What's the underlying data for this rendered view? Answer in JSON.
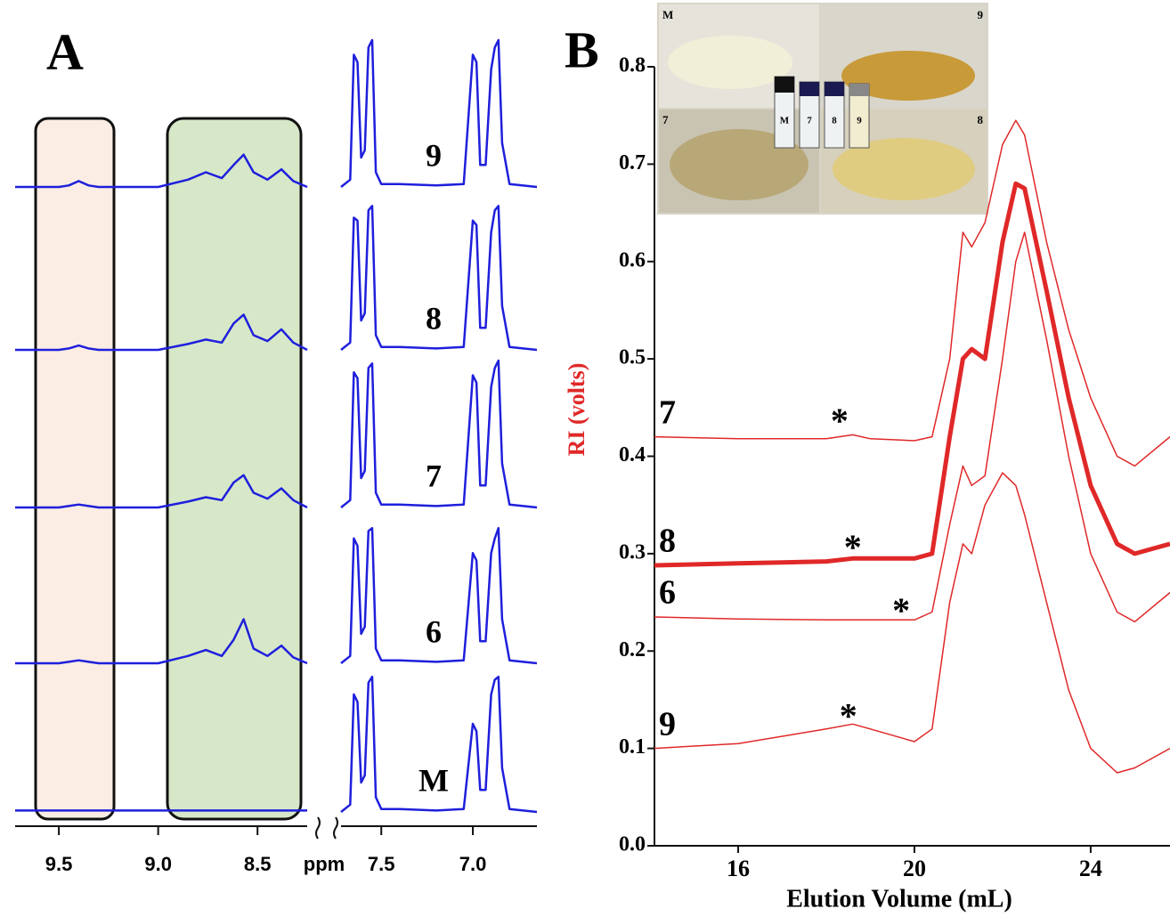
{
  "chart_data": [
    {
      "type": "line",
      "panel_label": "A",
      "xlabel": "ppm",
      "xlim": [
        9.72,
        6.65
      ],
      "xbreak": [
        8.25,
        7.72
      ],
      "xticks": [
        9.5,
        {
          "value": 9,
          "label": "9.0"
        },
        8.5,
        7.5,
        {
          "value": 7,
          "label": "7.0"
        }
      ],
      "x": [
        9.72,
        9.5,
        9.45,
        9.4,
        9.35,
        9.3,
        9.0,
        8.85,
        8.76,
        8.68,
        8.62,
        8.57,
        8.52,
        8.45,
        8.38,
        8.32,
        8.25,
        8.0,
        7.72,
        7.67,
        7.65,
        7.63,
        7.61,
        7.59,
        7.57,
        7.55,
        7.53,
        7.5,
        7.4,
        7.2,
        7.05,
        7.0,
        6.98,
        6.96,
        6.93,
        6.9,
        6.88,
        6.86,
        6.84,
        6.8,
        6.65
      ],
      "color": "#1f1fdc",
      "series": [
        {
          "name": "9",
          "values": [
            0,
            0,
            0.01,
            0.04,
            0.01,
            0,
            0,
            0.05,
            0.1,
            0.06,
            0.15,
            0.22,
            0.1,
            0.05,
            0.12,
            0.04,
            0,
            null,
            0,
            0.05,
            0.9,
            0.85,
            0.2,
            0.25,
            0.95,
            1.0,
            0.1,
            0.02,
            0.02,
            0.01,
            0.02,
            0.9,
            0.85,
            0.15,
            0.15,
            0.8,
            0.95,
            1.0,
            0.3,
            0.02,
            0
          ]
        },
        {
          "name": "8",
          "values": [
            0,
            0,
            0.01,
            0.03,
            0.01,
            0,
            0,
            0.04,
            0.07,
            0.05,
            0.18,
            0.24,
            0.1,
            0.06,
            0.14,
            0.05,
            0,
            null,
            0,
            0.05,
            0.9,
            0.88,
            0.2,
            0.25,
            0.95,
            0.98,
            0.1,
            0.02,
            0.02,
            0.01,
            0.02,
            0.88,
            0.85,
            0.15,
            0.15,
            0.8,
            0.95,
            0.98,
            0.3,
            0.02,
            0
          ]
        },
        {
          "name": "7",
          "values": [
            0,
            0,
            0.01,
            0.02,
            0.01,
            0,
            0,
            0.04,
            0.07,
            0.05,
            0.17,
            0.22,
            0.1,
            0.06,
            0.13,
            0.05,
            0,
            null,
            0,
            0.05,
            0.92,
            0.88,
            0.2,
            0.25,
            0.95,
            0.98,
            0.1,
            0.02,
            0.02,
            0.01,
            0.02,
            0.9,
            0.85,
            0.15,
            0.15,
            0.82,
            0.95,
            1.0,
            0.3,
            0.02,
            0
          ]
        },
        {
          "name": "6",
          "values": [
            0,
            0,
            0.01,
            0.02,
            0.01,
            0,
            0,
            0.05,
            0.09,
            0.05,
            0.16,
            0.3,
            0.1,
            0.05,
            0.12,
            0.04,
            0,
            null,
            0,
            0.05,
            0.85,
            0.8,
            0.2,
            0.25,
            0.9,
            0.92,
            0.1,
            0.02,
            0.02,
            0.01,
            0.02,
            0.75,
            0.7,
            0.15,
            0.15,
            0.75,
            0.85,
            0.92,
            0.3,
            0.02,
            0
          ]
        },
        {
          "name": "M",
          "values": [
            0.01,
            0.01,
            0.01,
            0.01,
            0.01,
            0.01,
            0.01,
            0.01,
            0.01,
            0.01,
            0.01,
            0.01,
            0.01,
            0.01,
            0.01,
            0.01,
            0.01,
            null,
            0,
            0.05,
            0.8,
            0.75,
            0.2,
            0.25,
            0.88,
            0.92,
            0.1,
            0.02,
            0.02,
            0.01,
            0.02,
            0.6,
            0.55,
            0.15,
            0.15,
            0.8,
            0.9,
            0.92,
            0.3,
            0.02,
            0
          ]
        }
      ]
    },
    {
      "type": "line",
      "panel_label": "B",
      "xlabel": "Elution Volume (mL)",
      "ylabel": "RI (volts)",
      "xlim": [
        14.1,
        25.8
      ],
      "xticks": [
        16,
        20,
        24
      ],
      "ylim": [
        0,
        0.8
      ],
      "yticks": [
        {
          "value": 0,
          "label": "0.0"
        },
        0.1,
        0.2,
        0.3,
        0.4,
        0.5,
        0.6,
        0.7,
        0.8
      ],
      "x": [
        14.1,
        16,
        18,
        18.6,
        19,
        20,
        20.4,
        20.8,
        21.1,
        21.3,
        21.6,
        22,
        22.3,
        22.5,
        23,
        23.5,
        24,
        24.6,
        25,
        25.8
      ],
      "color": "#e02828",
      "series": [
        {
          "name": "7",
          "width": 1.5,
          "values": [
            0.42,
            0.418,
            0.418,
            0.422,
            0.418,
            0.416,
            0.42,
            0.5,
            0.63,
            0.615,
            0.64,
            0.72,
            0.745,
            0.73,
            0.62,
            0.53,
            0.46,
            0.4,
            0.39,
            0.42
          ]
        },
        {
          "name": "8",
          "width": 5,
          "values": [
            0.288,
            0.29,
            0.292,
            0.295,
            0.295,
            0.295,
            0.3,
            0.42,
            0.5,
            0.51,
            0.5,
            0.62,
            0.68,
            0.675,
            0.57,
            0.46,
            0.37,
            0.31,
            0.3,
            0.31
          ]
        },
        {
          "name": "6",
          "width": 1.5,
          "values": [
            0.235,
            0.233,
            0.232,
            0.232,
            0.232,
            0.232,
            0.24,
            0.33,
            0.39,
            0.37,
            0.38,
            0.5,
            0.6,
            0.63,
            0.52,
            0.4,
            0.3,
            0.24,
            0.23,
            0.26
          ]
        },
        {
          "name": "9",
          "width": 1.5,
          "values": [
            0.1,
            0.105,
            0.12,
            0.125,
            0.12,
            0.107,
            0.12,
            0.25,
            0.31,
            0.3,
            0.35,
            0.383,
            0.37,
            0.34,
            0.25,
            0.16,
            0.1,
            0.075,
            0.08,
            0.1
          ]
        }
      ],
      "annotations": [
        {
          "text": "*",
          "x": 18.3,
          "y": 0.44
        },
        {
          "text": "*",
          "x": 18.6,
          "y": 0.31
        },
        {
          "text": "*",
          "x": 19.7,
          "y": 0.245
        },
        {
          "text": "*",
          "x": 18.5,
          "y": 0.137
        }
      ],
      "inset": {
        "quadrant_labels": [
          "M",
          "9",
          "7",
          "8"
        ],
        "vial_labels": [
          "M",
          "7",
          "8",
          "9"
        ]
      }
    }
  ]
}
